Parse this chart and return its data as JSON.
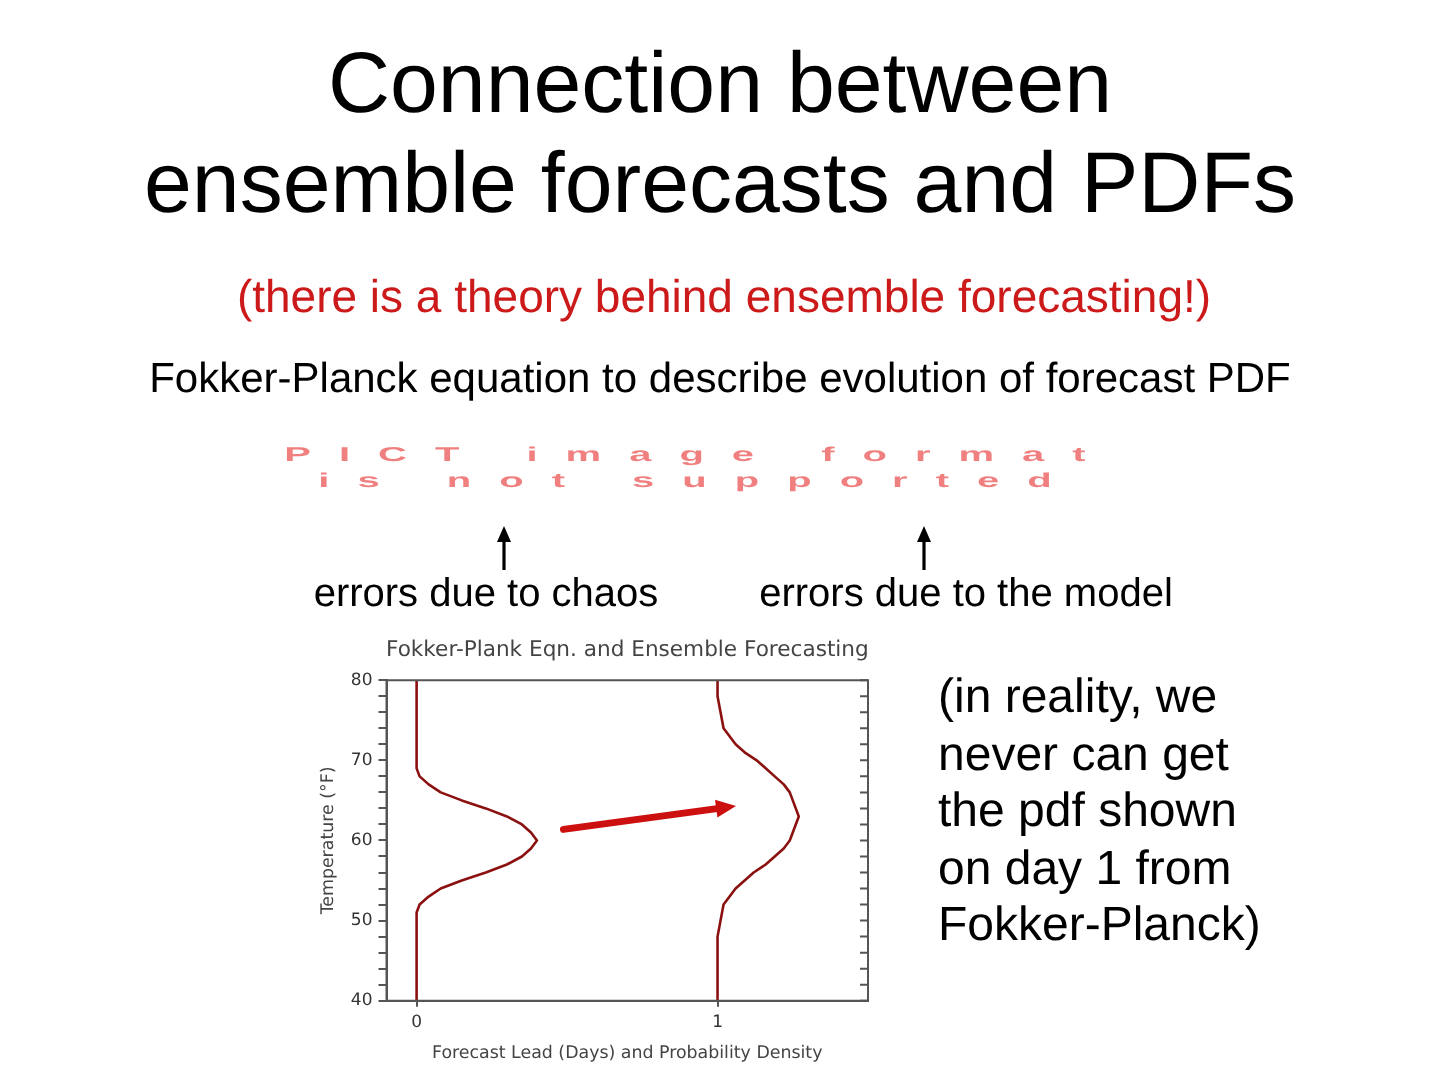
{
  "chart_data": {
    "type": "line",
    "title": "Connection between ensemble forecasts and PDFs",
    "subtitle": "(there is a theory behind ensemble forecasting!)",
    "xlabel": "Forecast Lead (Days) and Probability Density",
    "ylabel": "Temperature (°F)",
    "annotations": [
      "Fokker-Planck equation to describe evolution of forecast PDF",
      "PICT image format is not supported",
      "errors due to chaos",
      "errors due to the model",
      "Fokker-Plank Eqn. and Ensemble Forecasting",
      "(in reality, we never can get the pdf shown on day 1 from Fokker-Planck)"
    ],
    "series": [
      {
        "color": "#8b1010",
        "x": [
          0,
          0,
          0.01,
          0.04,
          0.08,
          0.15,
          0.23,
          0.3,
          0.35,
          0.38,
          0.4,
          0.38,
          0.35,
          0.3,
          0.23,
          0.15,
          0.08,
          0.04,
          0.01,
          0,
          0
        ],
        "values": [
          40,
          51,
          52,
          53,
          54,
          55,
          56,
          57,
          58,
          59,
          60,
          61,
          62,
          63,
          64,
          65,
          66,
          67,
          68,
          69,
          80
        ]
      },
      {
        "color": "#8b1010",
        "x": [
          1,
          1,
          1.01,
          1.02,
          1.06,
          1.09,
          1.12,
          1.16,
          1.19,
          1.22,
          1.24,
          1.25,
          1.26,
          1.27,
          1.26,
          1.25,
          1.24,
          1.22,
          1.19,
          1.16,
          1.13,
          1.09,
          1.06,
          1.02,
          1.01,
          1,
          1
        ],
        "values": [
          40,
          48,
          50,
          52,
          54,
          55,
          56,
          57,
          58,
          59,
          60,
          61,
          62,
          63,
          64,
          65,
          66,
          67,
          68,
          69,
          70,
          71,
          72,
          74,
          76,
          78,
          80
        ]
      }
    ],
    "xlim": [
      -0.1,
      1.5
    ],
    "xticks": [
      0,
      1
    ],
    "ylim": [
      40,
      80
    ],
    "yticks": [
      40,
      {
        "value": 42,
        "label": null
      },
      {
        "value": 44,
        "label": null
      },
      {
        "value": 46,
        "label": null
      },
      {
        "value": 48,
        "label": null
      },
      50,
      {
        "value": 52,
        "label": null
      },
      {
        "value": 54,
        "label": null
      },
      {
        "value": 56,
        "label": null
      },
      {
        "value": 58,
        "label": null
      },
      60,
      {
        "value": 62,
        "label": null
      },
      {
        "value": 64,
        "label": null
      },
      {
        "value": 66,
        "label": null
      },
      {
        "value": 68,
        "label": null
      },
      70,
      {
        "value": 72,
        "label": null
      },
      {
        "value": 74,
        "label": null
      },
      {
        "value": 76,
        "label": null
      },
      {
        "value": 78,
        "label": null
      },
      80
    ],
    "grid": false,
    "legend": false,
    "marker": "none"
  }
}
